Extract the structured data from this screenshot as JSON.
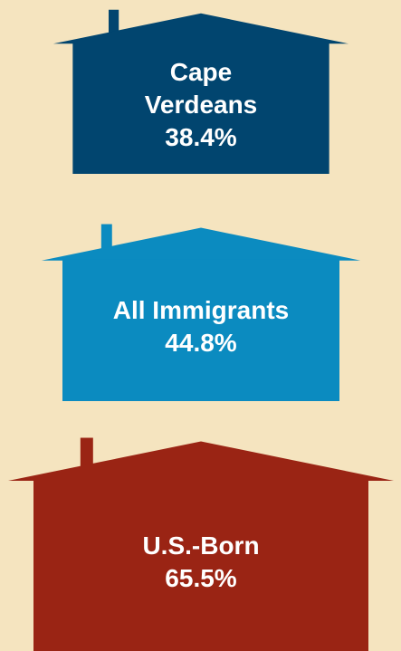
{
  "chart_data": {
    "type": "house",
    "categories": [
      "Cape Verdeans",
      "All Immigrants",
      "U.S.-Born"
    ],
    "values": [
      38.4,
      44.8,
      65.5
    ],
    "value_labels": [
      "38.4%",
      "44.8%",
      "65.5%"
    ],
    "colors": [
      "#01456f",
      "#0b8bc0",
      "#9a2414"
    ]
  }
}
